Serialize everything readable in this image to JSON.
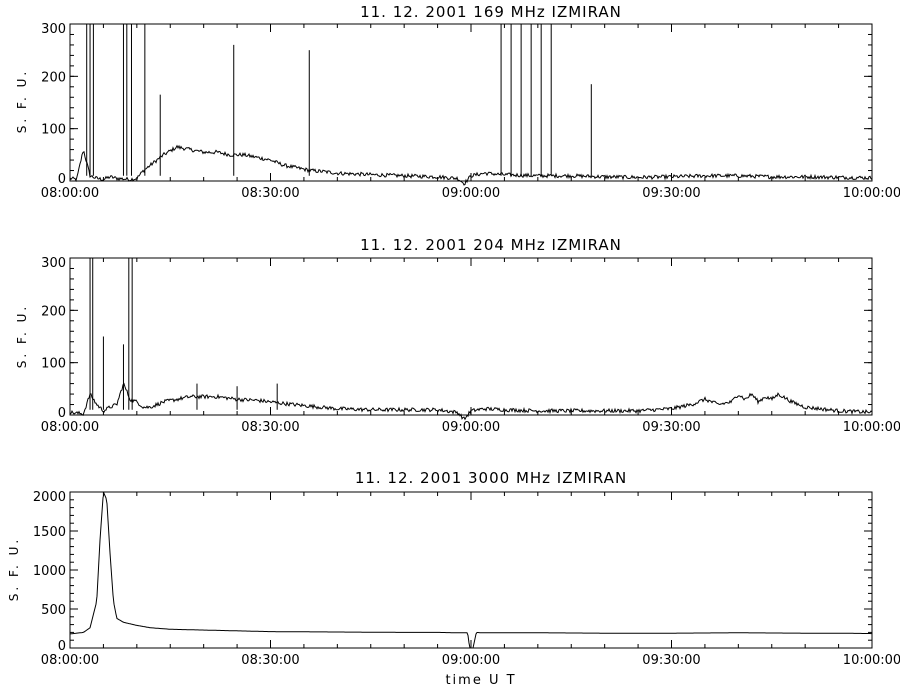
{
  "chart_data": [
    {
      "type": "line",
      "title": "11.  12.  2001    169 MHz    IZMIRAN",
      "ylabel": "S. F. U.",
      "xlabel": "",
      "ylim": [
        0,
        300
      ],
      "yticks": [
        "0",
        "100",
        "200",
        "300"
      ],
      "xlim_minutes": [
        0,
        120
      ],
      "xticks": [
        "08:00:00",
        "08:30:00",
        "09:00:00",
        "09:30:00",
        "10:00:00"
      ],
      "grid": false,
      "series": [
        {
          "x": [
            0,
            1,
            2,
            3,
            4,
            5,
            6,
            7,
            8,
            9,
            10,
            11,
            12,
            14,
            16,
            18,
            20,
            22,
            24,
            26,
            28,
            30,
            32,
            34,
            36,
            38,
            40,
            45,
            50,
            55,
            58,
            59,
            60,
            62,
            65,
            70,
            75,
            80,
            85,
            90,
            95,
            100,
            105,
            110,
            115,
            120
          ],
          "y": [
            5,
            3,
            60,
            10,
            5,
            3,
            8,
            5,
            4,
            3,
            5,
            20,
            30,
            50,
            65,
            60,
            55,
            55,
            50,
            50,
            45,
            40,
            30,
            25,
            20,
            18,
            15,
            12,
            10,
            8,
            5,
            -5,
            10,
            15,
            12,
            10,
            10,
            8,
            7,
            8,
            10,
            10,
            8,
            8,
            7,
            6
          ]
        }
      ],
      "spikes": [
        {
          "x": 2.5,
          "y": 300
        },
        {
          "x": 3.0,
          "y": 300
        },
        {
          "x": 3.5,
          "y": 300
        },
        {
          "x": 8.0,
          "y": 300
        },
        {
          "x": 8.5,
          "y": 300
        },
        {
          "x": 9.2,
          "y": 300
        },
        {
          "x": 11.2,
          "y": 300
        },
        {
          "x": 13.5,
          "y": 165
        },
        {
          "x": 24.5,
          "y": 260
        },
        {
          "x": 35.8,
          "y": 250
        },
        {
          "x": 64.5,
          "y": 300
        },
        {
          "x": 66.0,
          "y": 300
        },
        {
          "x": 67.5,
          "y": 300
        },
        {
          "x": 69.0,
          "y": 300
        },
        {
          "x": 70.5,
          "y": 300
        },
        {
          "x": 72.0,
          "y": 300
        },
        {
          "x": 78.0,
          "y": 185
        }
      ]
    },
    {
      "type": "line",
      "title": "11.  12.  2001    204 MHz    IZMIRAN",
      "ylabel": "S. F. U.",
      "xlabel": "",
      "ylim": [
        0,
        300
      ],
      "yticks": [
        "0",
        "100",
        "200",
        "300"
      ],
      "xlim_minutes": [
        0,
        120
      ],
      "xticks": [
        "08:00:00",
        "08:30:00",
        "09:00:00",
        "09:30:00",
        "10:00:00"
      ],
      "grid": false,
      "series": [
        {
          "x": [
            0,
            2,
            3,
            4,
            5,
            6,
            7,
            8,
            9,
            10,
            11,
            12,
            14,
            16,
            18,
            20,
            22,
            25,
            28,
            30,
            32,
            35,
            40,
            45,
            50,
            55,
            58,
            59,
            60,
            61,
            62,
            65,
            70,
            75,
            80,
            85,
            90,
            93,
            95,
            97,
            99,
            100,
            101,
            102,
            103,
            104,
            105,
            106,
            108,
            110,
            115,
            120
          ],
          "y": [
            5,
            2,
            40,
            20,
            8,
            15,
            20,
            60,
            30,
            25,
            15,
            15,
            25,
            30,
            35,
            35,
            35,
            30,
            28,
            25,
            22,
            18,
            12,
            10,
            10,
            10,
            5,
            -8,
            8,
            10,
            12,
            10,
            8,
            8,
            8,
            8,
            12,
            20,
            30,
            20,
            25,
            40,
            30,
            40,
            25,
            35,
            30,
            40,
            25,
            15,
            8,
            5
          ]
        }
      ],
      "spikes": [
        {
          "x": 3.0,
          "y": 300
        },
        {
          "x": 3.4,
          "y": 300
        },
        {
          "x": 5.0,
          "y": 150
        },
        {
          "x": 8.0,
          "y": 135
        },
        {
          "x": 8.8,
          "y": 300
        },
        {
          "x": 9.3,
          "y": 300
        },
        {
          "x": 19.0,
          "y": 60
        },
        {
          "x": 25.0,
          "y": 55
        },
        {
          "x": 31.0,
          "y": 60
        }
      ]
    },
    {
      "type": "line",
      "title": "11.  12.  2001    3000 MHz    IZMIRAN",
      "ylabel": "S. F. U.",
      "xlabel": "time   U T",
      "ylim": [
        0,
        2000
      ],
      "yticks": [
        "0",
        "500",
        "1000",
        "1500",
        "2000"
      ],
      "xlim_minutes": [
        0,
        120
      ],
      "xticks": [
        "08:00:00",
        "08:30:00",
        "09:00:00",
        "09:30:00",
        "10:00:00"
      ],
      "grid": false,
      "series": [
        {
          "x": [
            0,
            1,
            2,
            3,
            4,
            4.5,
            5,
            5.5,
            6,
            6.5,
            7,
            8,
            10,
            12,
            15,
            20,
            25,
            30,
            40,
            50,
            55,
            58,
            59.5,
            59.8,
            60.3,
            60.8,
            61.5,
            62,
            70,
            80,
            90,
            100,
            110,
            115,
            120
          ],
          "y": [
            180,
            190,
            200,
            260,
            600,
            1400,
            2000,
            1900,
            1200,
            600,
            380,
            330,
            290,
            260,
            240,
            230,
            220,
            210,
            205,
            200,
            200,
            195,
            195,
            0,
            0,
            200,
            195,
            195,
            195,
            190,
            190,
            195,
            190,
            190,
            185
          ]
        }
      ]
    }
  ]
}
